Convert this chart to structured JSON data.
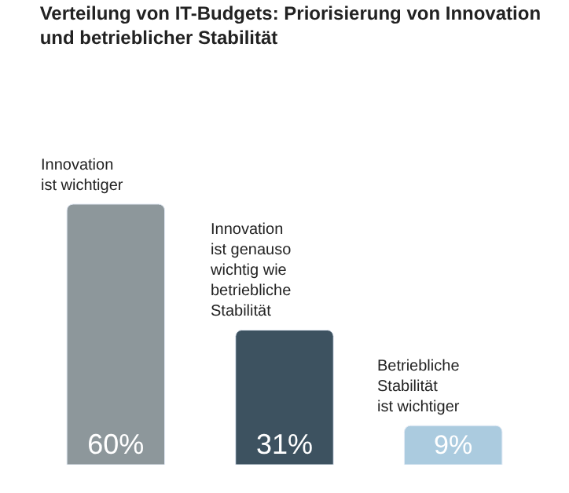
{
  "chart_data": {
    "type": "bar",
    "title": "Verteilung von IT-Budgets: Priorisierung von Innovation\nund betrieblicher Stabilität",
    "categories": [
      "Innovation\nist wichtiger",
      "Innovation\nist genauso\nwichtig wie\nbetriebliche\nStabilität",
      "Betriebliche\nStabilität\nist wichtiger"
    ],
    "values": [
      60,
      31,
      9
    ],
    "colors": [
      "#8d979b",
      "#3d5260",
      "#abcbdf"
    ],
    "value_labels": [
      "60%",
      "31%",
      "9%"
    ],
    "legend": false,
    "tick_labels": false
  }
}
